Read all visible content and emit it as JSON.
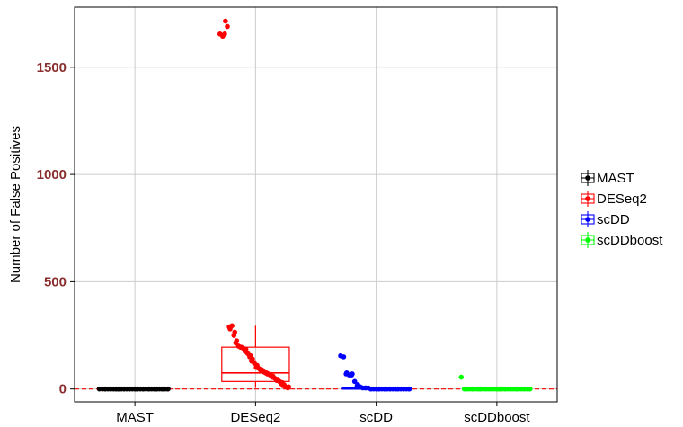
{
  "chart_data": {
    "type": "box",
    "title": "",
    "xlabel": "",
    "ylabel": "Number of  False Positives",
    "categories": [
      "MAST",
      "DESeq2",
      "scDD",
      "scDDboost"
    ],
    "ylim": [
      -60,
      1780
    ],
    "yticks": [
      0,
      500,
      1000,
      1500
    ],
    "ytick_color": "#8b2e2e",
    "grid": true,
    "grid_color": "#cccccc",
    "reference_line": {
      "y": 0,
      "color": "#ff0000",
      "style": "dashed"
    },
    "legend_position": "right",
    "series": [
      {
        "name": "MAST",
        "color": "#000000",
        "box": {
          "min": 0,
          "q1": 0,
          "median": 0,
          "q3": 0,
          "max": 0
        },
        "points": [
          0,
          0,
          0,
          0,
          0,
          0,
          0,
          0,
          0,
          0,
          0,
          0,
          0,
          0,
          0,
          0,
          0,
          0,
          0,
          0,
          0,
          0,
          0,
          0,
          0,
          0,
          0,
          0,
          0,
          0,
          0,
          0,
          0,
          0,
          0,
          0,
          0,
          0,
          0,
          0
        ]
      },
      {
        "name": "DESeq2",
        "color": "#ff0000",
        "box": {
          "min": 5,
          "q1": 35,
          "median": 75,
          "q3": 195,
          "max": 295
        },
        "points": [
          1655,
          1645,
          1715,
          1655,
          1690,
          280,
          290,
          295,
          265,
          250,
          225,
          215,
          200,
          195,
          195,
          190,
          185,
          175,
          165,
          155,
          150,
          140,
          130,
          120,
          110,
          100,
          95,
          90,
          85,
          80,
          75,
          75,
          70,
          70,
          65,
          60,
          55,
          50,
          45,
          40,
          35,
          30,
          25,
          20,
          15,
          10,
          10,
          5
        ]
      },
      {
        "name": "scDD",
        "color": "#0000ff",
        "box": {
          "min": 0,
          "q1": 0,
          "median": 0,
          "q3": 5,
          "max": 10
        },
        "points": [
          155,
          150,
          75,
          70,
          65,
          70,
          65,
          35,
          20,
          15,
          10,
          10,
          5,
          5,
          5,
          5,
          0,
          0,
          0,
          0,
          0,
          0,
          0,
          0,
          0,
          0,
          0,
          0,
          0,
          0,
          0,
          0,
          0,
          0,
          0,
          0,
          0,
          0,
          0,
          0
        ]
      },
      {
        "name": "scDDboost",
        "color": "#00ff00",
        "box": {
          "min": 0,
          "q1": 0,
          "median": 0,
          "q3": 0,
          "max": 0
        },
        "points": [
          55,
          0,
          0,
          0,
          0,
          0,
          0,
          0,
          0,
          0,
          0,
          0,
          0,
          0,
          0,
          0,
          0,
          0,
          0,
          0,
          0,
          0,
          0,
          0,
          0,
          0,
          0,
          0,
          0,
          0,
          0,
          0,
          0,
          0,
          0,
          0,
          0,
          0,
          0,
          0
        ]
      }
    ]
  }
}
